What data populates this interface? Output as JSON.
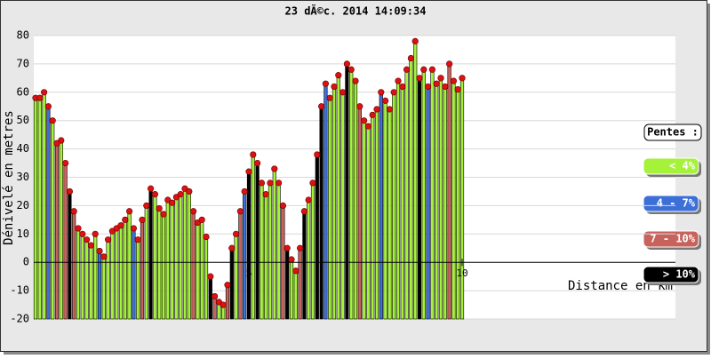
{
  "chart_data": {
    "type": "bar",
    "title": "23 dÃ©c. 2014 14:09:34",
    "y_label": "Dénivelé en metres",
    "x_label": "Distance en km",
    "legend_title": "Pentes :",
    "point_color": "#dd1111",
    "xlim": [
      0,
      15
    ],
    "xticks": [
      5,
      10
    ],
    "ylim": [
      -20,
      80
    ],
    "yticks": [
      -20,
      -10,
      0,
      10,
      20,
      30,
      40,
      50,
      60,
      70,
      80
    ],
    "grid": true,
    "series": [
      {
        "name": "< 4%",
        "color": "#a6f23a",
        "x": [
          0,
          0.1,
          0.2,
          0.4,
          0.6,
          1.0,
          1.1,
          1.2,
          1.3,
          1.4,
          1.6,
          1.7,
          1.8,
          1.9,
          2.0,
          2.1,
          2.2,
          2.4,
          2.6,
          2.8,
          2.9,
          3.0,
          3.1,
          3.2,
          3.3,
          3.4,
          3.5,
          3.6,
          3.8,
          3.9,
          4.0,
          4.3,
          4.4,
          4.7,
          5.1,
          5.3,
          5.4,
          5.5,
          5.6,
          5.7,
          6.0,
          6.1,
          6.4,
          6.5,
          6.9,
          7.0,
          7.1,
          7.2,
          7.4,
          7.5,
          7.7,
          7.8,
          7.9,
          8.0,
          8.2,
          8.3,
          8.4,
          8.5,
          8.6,
          8.7,
          8.8,
          8.9,
          9.1,
          9.3,
          9.4,
          9.5,
          9.6,
          9.8,
          9.9,
          10.0
        ],
        "values": [
          58,
          58,
          60,
          50,
          43,
          12,
          10,
          8,
          6,
          10,
          2,
          8,
          11,
          12,
          13,
          15,
          18,
          8,
          20,
          24,
          19,
          17,
          22,
          21,
          23,
          24,
          26,
          25,
          14,
          15,
          9,
          -14,
          -15,
          10,
          38,
          28,
          24,
          28,
          33,
          28,
          1,
          -3,
          22,
          28,
          58,
          62,
          66,
          60,
          68,
          64,
          50,
          48,
          52,
          54,
          57,
          54,
          60,
          64,
          62,
          68,
          72,
          78,
          68,
          68,
          63,
          65,
          62,
          64,
          61,
          65
        ]
      },
      {
        "name": "4 - 7%",
        "color": "#3d6fd9",
        "x": [
          0.3,
          1.5,
          2.3,
          4.9,
          6.8,
          8.1,
          9.2
        ],
        "values": [
          55,
          4,
          12,
          25,
          63,
          60,
          62
        ]
      },
      {
        "name": "7 - 10%",
        "color": "#c8625c",
        "x": [
          0.5,
          0.7,
          0.9,
          2.5,
          3.7,
          4.2,
          4.5,
          4.8,
          5.8,
          6.2,
          7.6,
          9.7
        ],
        "values": [
          42,
          35,
          18,
          15,
          18,
          -12,
          -8,
          18,
          20,
          5,
          55,
          70
        ]
      },
      {
        "name": "> 10%",
        "color": "#000000",
        "x": [
          0.8,
          2.7,
          4.1,
          4.6,
          5.0,
          5.2,
          5.9,
          6.3,
          6.6,
          6.7,
          7.3,
          9.0
        ],
        "values": [
          25,
          26,
          -5,
          5,
          32,
          35,
          5,
          18,
          38,
          55,
          70,
          65
        ]
      }
    ]
  }
}
